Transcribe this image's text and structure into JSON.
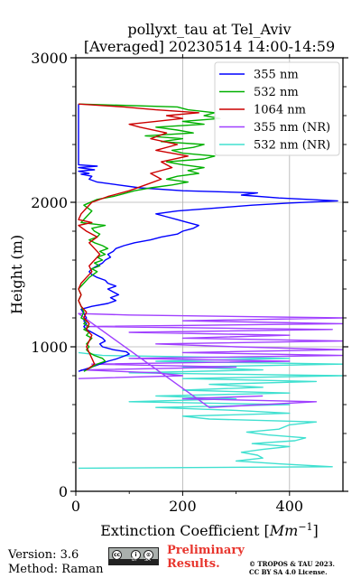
{
  "chart_data": {
    "type": "line",
    "title": "pollyxt_tau at Tel_Aviv",
    "subtitle": "[Averaged] 20230514 14:00-14:59",
    "xlabel": "Extinction Coefficient [$Mm^{-1}$]",
    "ylabel": "Height (m)",
    "xlim": [
      0,
      500
    ],
    "ylim": [
      0,
      3000
    ],
    "x_ticks": [
      "0",
      "200",
      "400"
    ],
    "y_ticks": [
      "0",
      "1000",
      "2000",
      "3000"
    ],
    "grid": true,
    "legend_position": "top-right",
    "series": [
      {
        "name": "355 nm",
        "color": "#0000ff",
        "points": [
          [
            5,
            830
          ],
          [
            30,
            860
          ],
          [
            45,
            880
          ],
          [
            60,
            900
          ],
          [
            75,
            915
          ],
          [
            90,
            935
          ],
          [
            100,
            950
          ],
          [
            95,
            965
          ],
          [
            70,
            980
          ],
          [
            50,
            1000
          ],
          [
            45,
            1020
          ],
          [
            55,
            1040
          ],
          [
            50,
            1060
          ],
          [
            40,
            1080
          ],
          [
            30,
            1100
          ],
          [
            20,
            1120
          ],
          [
            15,
            1140
          ],
          [
            20,
            1160
          ],
          [
            15,
            1180
          ],
          [
            20,
            1200
          ],
          [
            15,
            1230
          ],
          [
            10,
            1260
          ],
          [
            30,
            1280
          ],
          [
            60,
            1300
          ],
          [
            75,
            1320
          ],
          [
            65,
            1340
          ],
          [
            80,
            1360
          ],
          [
            70,
            1380
          ],
          [
            60,
            1400
          ],
          [
            75,
            1420
          ],
          [
            60,
            1440
          ],
          [
            55,
            1460
          ],
          [
            40,
            1480
          ],
          [
            30,
            1500
          ],
          [
            25,
            1520
          ],
          [
            30,
            1540
          ],
          [
            40,
            1560
          ],
          [
            50,
            1580
          ],
          [
            55,
            1600
          ],
          [
            65,
            1620
          ],
          [
            60,
            1640
          ],
          [
            70,
            1660
          ],
          [
            75,
            1680
          ],
          [
            90,
            1700
          ],
          [
            110,
            1720
          ],
          [
            140,
            1740
          ],
          [
            160,
            1760
          ],
          [
            190,
            1780
          ],
          [
            200,
            1800
          ],
          [
            220,
            1820
          ],
          [
            230,
            1840
          ],
          [
            210,
            1860
          ],
          [
            190,
            1880
          ],
          [
            170,
            1900
          ],
          [
            150,
            1920
          ],
          [
            190,
            1940
          ],
          [
            260,
            1960
          ],
          [
            330,
            1980
          ],
          [
            400,
            1995
          ],
          [
            490,
            2010
          ],
          [
            380,
            2030
          ],
          [
            310,
            2050
          ],
          [
            340,
            2065
          ],
          [
            200,
            2080
          ],
          [
            120,
            2100
          ],
          [
            80,
            2120
          ],
          [
            40,
            2140
          ],
          [
            25,
            2160
          ],
          [
            30,
            2180
          ],
          [
            10,
            2195
          ],
          [
            25,
            2200
          ],
          [
            5,
            2215
          ],
          [
            35,
            2225
          ],
          [
            5,
            2240
          ],
          [
            40,
            2250
          ],
          [
            5,
            2260
          ],
          [
            5,
            2680
          ]
        ]
      },
      {
        "name": "532 nm",
        "color": "#00b000",
        "points": [
          [
            15,
            830
          ],
          [
            30,
            860
          ],
          [
            40,
            880
          ],
          [
            55,
            900
          ],
          [
            50,
            920
          ],
          [
            35,
            940
          ],
          [
            25,
            960
          ],
          [
            20,
            980
          ],
          [
            25,
            1000
          ],
          [
            20,
            1020
          ],
          [
            25,
            1040
          ],
          [
            30,
            1060
          ],
          [
            20,
            1080
          ],
          [
            25,
            1100
          ],
          [
            15,
            1120
          ],
          [
            25,
            1140
          ],
          [
            15,
            1160
          ],
          [
            20,
            1180
          ],
          [
            10,
            1200
          ],
          [
            15,
            1240
          ],
          [
            10,
            1280
          ],
          [
            5,
            1320
          ],
          [
            10,
            1360
          ],
          [
            5,
            1400
          ],
          [
            15,
            1440
          ],
          [
            25,
            1480
          ],
          [
            40,
            1520
          ],
          [
            30,
            1540
          ],
          [
            45,
            1560
          ],
          [
            35,
            1580
          ],
          [
            50,
            1600
          ],
          [
            40,
            1620
          ],
          [
            55,
            1640
          ],
          [
            45,
            1660
          ],
          [
            60,
            1680
          ],
          [
            50,
            1700
          ],
          [
            35,
            1720
          ],
          [
            25,
            1740
          ],
          [
            40,
            1760
          ],
          [
            45,
            1780
          ],
          [
            35,
            1800
          ],
          [
            30,
            1820
          ],
          [
            55,
            1840
          ],
          [
            10,
            1860
          ],
          [
            20,
            1900
          ],
          [
            30,
            1940
          ],
          [
            15,
            1980
          ],
          [
            40,
            2020
          ],
          [
            70,
            2040
          ],
          [
            90,
            2060
          ],
          [
            110,
            2080
          ],
          [
            140,
            2100
          ],
          [
            180,
            2120
          ],
          [
            210,
            2140
          ],
          [
            170,
            2160
          ],
          [
            190,
            2180
          ],
          [
            230,
            2200
          ],
          [
            210,
            2220
          ],
          [
            240,
            2240
          ],
          [
            200,
            2260
          ],
          [
            170,
            2280
          ],
          [
            240,
            2300
          ],
          [
            260,
            2320
          ],
          [
            200,
            2340
          ],
          [
            180,
            2360
          ],
          [
            220,
            2380
          ],
          [
            240,
            2400
          ],
          [
            160,
            2420
          ],
          [
            200,
            2440
          ],
          [
            130,
            2460
          ],
          [
            220,
            2480
          ],
          [
            190,
            2500
          ],
          [
            150,
            2520
          ],
          [
            240,
            2540
          ],
          [
            200,
            2560
          ],
          [
            270,
            2580
          ],
          [
            240,
            2600
          ],
          [
            260,
            2620
          ],
          [
            210,
            2640
          ],
          [
            190,
            2660
          ],
          [
            5,
            2680
          ]
        ]
      },
      {
        "name": "1064 nm",
        "color": "#cc0000",
        "points": [
          [
            20,
            840
          ],
          [
            35,
            880
          ],
          [
            30,
            920
          ],
          [
            25,
            960
          ],
          [
            20,
            1000
          ],
          [
            25,
            1040
          ],
          [
            30,
            1080
          ],
          [
            20,
            1120
          ],
          [
            25,
            1160
          ],
          [
            15,
            1200
          ],
          [
            20,
            1240
          ],
          [
            10,
            1280
          ],
          [
            5,
            1320
          ],
          [
            10,
            1360
          ],
          [
            5,
            1400
          ],
          [
            10,
            1440
          ],
          [
            20,
            1480
          ],
          [
            30,
            1520
          ],
          [
            25,
            1560
          ],
          [
            35,
            1600
          ],
          [
            45,
            1640
          ],
          [
            35,
            1680
          ],
          [
            25,
            1720
          ],
          [
            40,
            1760
          ],
          [
            20,
            1800
          ],
          [
            5,
            1840
          ],
          [
            30,
            1860
          ],
          [
            5,
            1880
          ],
          [
            10,
            1920
          ],
          [
            20,
            1960
          ],
          [
            30,
            2000
          ],
          [
            60,
            2040
          ],
          [
            100,
            2080
          ],
          [
            130,
            2120
          ],
          [
            160,
            2160
          ],
          [
            140,
            2200
          ],
          [
            180,
            2240
          ],
          [
            160,
            2280
          ],
          [
            210,
            2320
          ],
          [
            150,
            2360
          ],
          [
            190,
            2400
          ],
          [
            140,
            2440
          ],
          [
            170,
            2480
          ],
          [
            120,
            2520
          ],
          [
            100,
            2540
          ],
          [
            150,
            2560
          ],
          [
            200,
            2580
          ],
          [
            170,
            2600
          ],
          [
            230,
            2620
          ],
          [
            150,
            2640
          ],
          [
            90,
            2660
          ],
          [
            5,
            2680
          ]
        ]
      },
      {
        "name": "355 nm (NR)",
        "color": "#a040ff",
        "points": [
          [
            5,
            780
          ],
          [
            200,
            800
          ],
          [
            150,
            820
          ],
          [
            10,
            840
          ],
          [
            300,
            860
          ],
          [
            30,
            880
          ],
          [
            400,
            900
          ],
          [
            100,
            920
          ],
          [
            500,
            940
          ],
          [
            200,
            960
          ],
          [
            500,
            980
          ],
          [
            300,
            1000
          ],
          [
            150,
            1020
          ],
          [
            500,
            1040
          ],
          [
            200,
            1060
          ],
          [
            400,
            1080
          ],
          [
            100,
            1100
          ],
          [
            480,
            1120
          ],
          [
            20,
            1140
          ],
          [
            500,
            1160
          ],
          [
            200,
            1180
          ],
          [
            500,
            1200
          ],
          [
            100,
            1220
          ],
          [
            5,
            1230
          ],
          [
            250,
            580
          ],
          [
            350,
            600
          ],
          [
            450,
            620
          ],
          [
            200,
            640
          ],
          [
            350,
            660
          ]
        ]
      },
      {
        "name": "532 nm (NR)",
        "color": "#40e0d0",
        "points": [
          [
            5,
            160
          ],
          [
            480,
            170
          ],
          [
            380,
            190
          ],
          [
            300,
            210
          ],
          [
            350,
            230
          ],
          [
            340,
            250
          ],
          [
            310,
            270
          ],
          [
            350,
            290
          ],
          [
            400,
            310
          ],
          [
            330,
            330
          ],
          [
            410,
            350
          ],
          [
            430,
            370
          ],
          [
            360,
            390
          ],
          [
            320,
            410
          ],
          [
            380,
            430
          ],
          [
            400,
            460
          ],
          [
            450,
            480
          ],
          [
            250,
            500
          ],
          [
            200,
            520
          ],
          [
            400,
            540
          ],
          [
            300,
            560
          ],
          [
            150,
            580
          ],
          [
            400,
            600
          ],
          [
            100,
            620
          ],
          [
            300,
            640
          ],
          [
            150,
            660
          ],
          [
            400,
            680
          ],
          [
            200,
            700
          ],
          [
            350,
            720
          ],
          [
            250,
            740
          ],
          [
            450,
            760
          ],
          [
            200,
            780
          ],
          [
            500,
            800
          ],
          [
            100,
            820
          ],
          [
            350,
            840
          ],
          [
            200,
            860
          ],
          [
            500,
            880
          ],
          [
            150,
            900
          ],
          [
            400,
            920
          ],
          [
            50,
            940
          ],
          [
            5,
            960
          ]
        ]
      }
    ]
  },
  "footer": {
    "version": "Version: 3.6",
    "method": "Method: Raman",
    "preliminary_line1": "Preliminary",
    "preliminary_line2": "Results.",
    "copyright_line1": "© TROPOS & TAU 2023.",
    "copyright_line2": "CC BY SA 4.0 License."
  },
  "badge": {
    "symbols": [
      "cc",
      "i",
      "⊙"
    ],
    "tags": [
      "BY",
      "SA"
    ]
  }
}
